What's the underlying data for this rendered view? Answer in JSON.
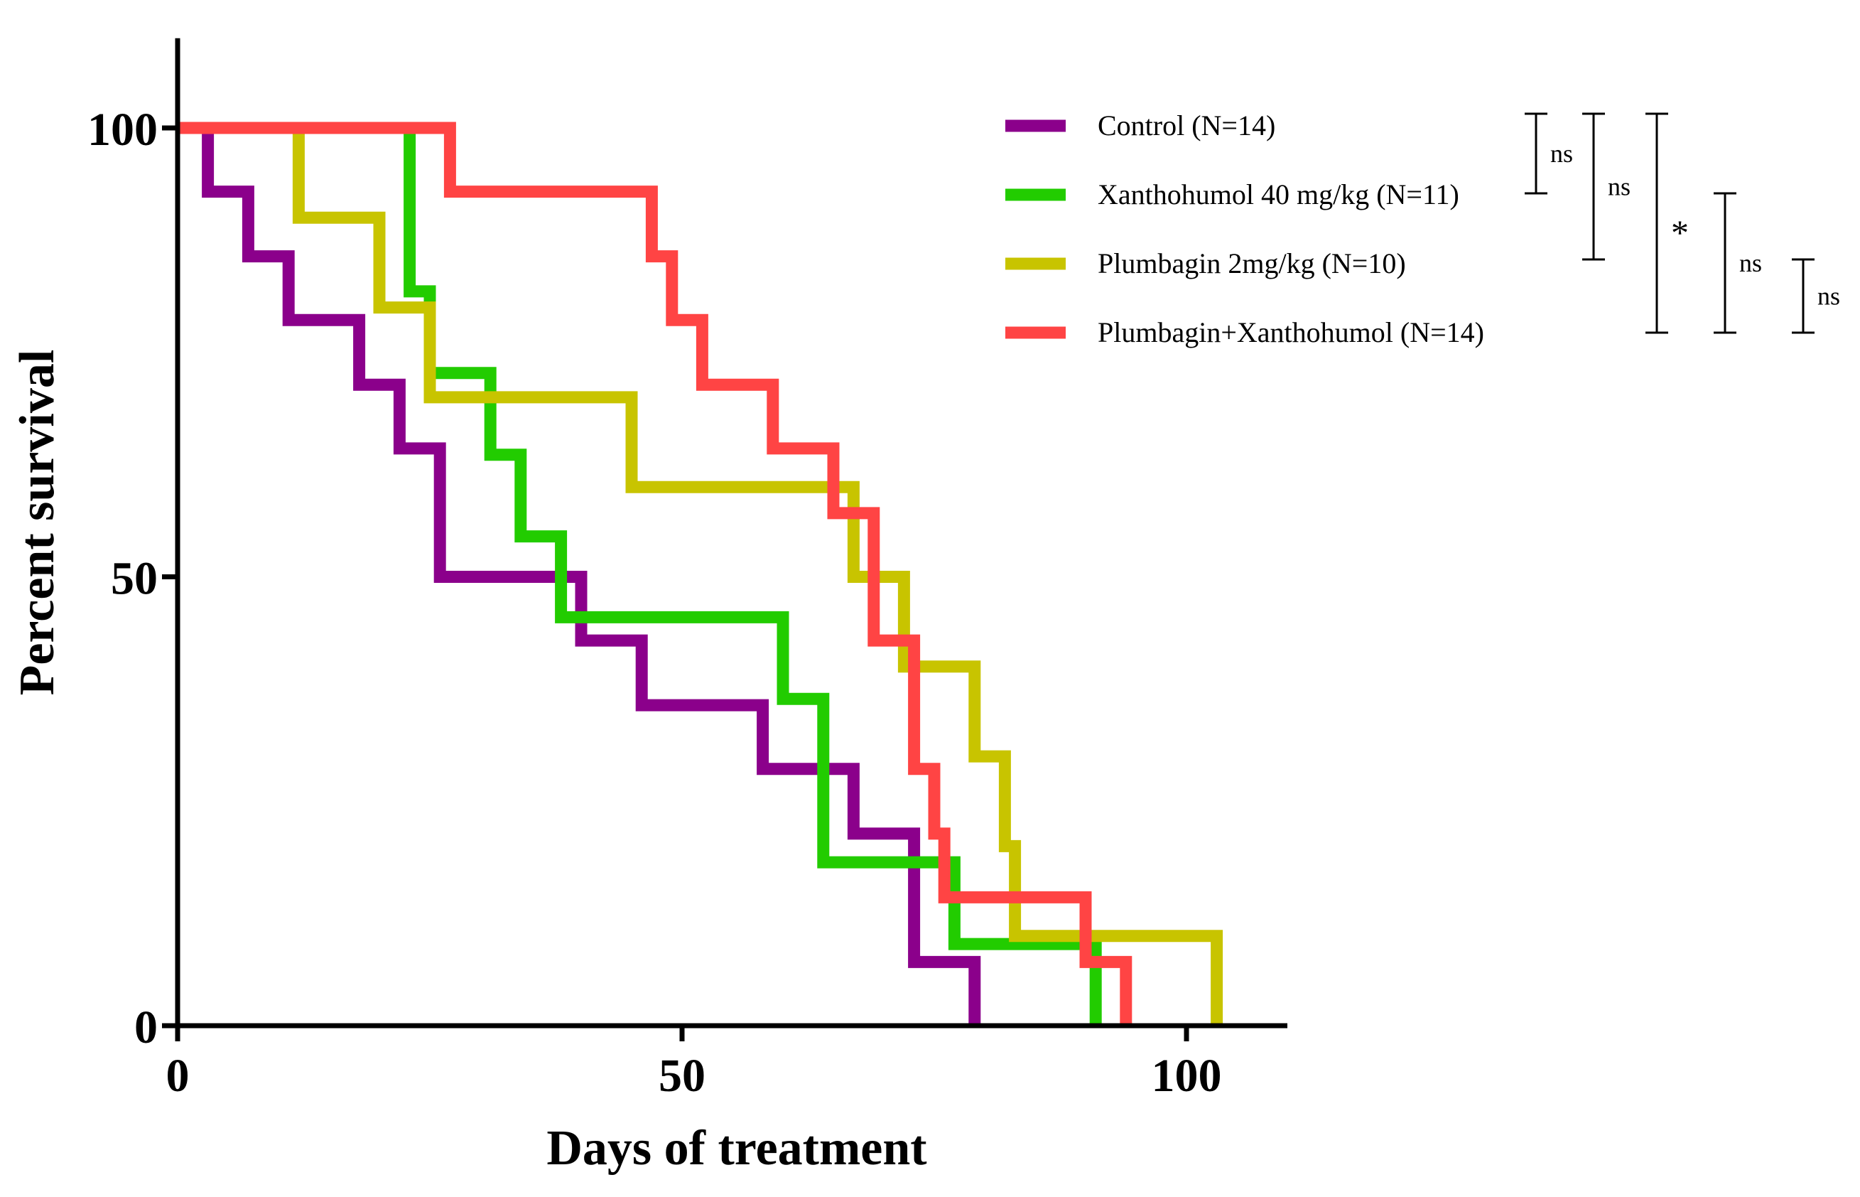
{
  "chart_data": {
    "type": "line",
    "subtype": "kaplan-meier-step",
    "xlabel": "Days of treatment",
    "ylabel": "Percent survival",
    "xlim": [
      0,
      110
    ],
    "ylim": [
      0,
      110
    ],
    "xticks": [
      0,
      50,
      100
    ],
    "yticks": [
      0,
      50,
      100
    ],
    "grid": false,
    "legend_position": "top-right",
    "series": [
      {
        "name": "Control (N=14)",
        "color": "#8B008B",
        "x": [
          0,
          3,
          7,
          11,
          18,
          22,
          26,
          40,
          46,
          58,
          67,
          73,
          79
        ],
        "y": [
          100,
          92.9,
          85.7,
          78.6,
          71.4,
          64.3,
          50,
          42.9,
          35.7,
          28.6,
          21.4,
          7.1,
          0
        ]
      },
      {
        "name": "Xanthohumol 40 mg/kg (N=11)",
        "color": "#22CC00",
        "x": [
          0,
          23,
          25,
          31,
          34,
          38,
          60,
          64,
          77,
          91
        ],
        "y": [
          100,
          81.8,
          72.7,
          63.6,
          54.5,
          45.5,
          36.4,
          18.2,
          9.1,
          0
        ]
      },
      {
        "name": "Plumbagin 2mg/kg (N=10)",
        "color": "#C8C400",
        "x": [
          0,
          12,
          20,
          25,
          45,
          67,
          72,
          79,
          82,
          83,
          103
        ],
        "y": [
          100,
          90,
          80,
          70,
          60,
          50,
          40,
          30,
          20,
          10,
          0
        ]
      },
      {
        "name": "Plumbagin+Xanthohumol (N=14)",
        "color": "#FF4444",
        "x": [
          0,
          27,
          47,
          49,
          52,
          59,
          65,
          69,
          73,
          75,
          76,
          90,
          94
        ],
        "y": [
          100,
          92.9,
          85.7,
          78.6,
          71.4,
          64.3,
          57.1,
          42.9,
          28.6,
          21.4,
          14.3,
          7.1,
          0
        ]
      }
    ],
    "significance": [
      {
        "from_series": 0,
        "to_series": 1,
        "label": "ns"
      },
      {
        "from_series": 0,
        "to_series": 2,
        "label": "ns"
      },
      {
        "from_series": 0,
        "to_series": 3,
        "label": "*"
      },
      {
        "from_series": 1,
        "to_series": 3,
        "label": "ns"
      },
      {
        "from_series": 2,
        "to_series": 3,
        "label": "ns"
      }
    ]
  }
}
